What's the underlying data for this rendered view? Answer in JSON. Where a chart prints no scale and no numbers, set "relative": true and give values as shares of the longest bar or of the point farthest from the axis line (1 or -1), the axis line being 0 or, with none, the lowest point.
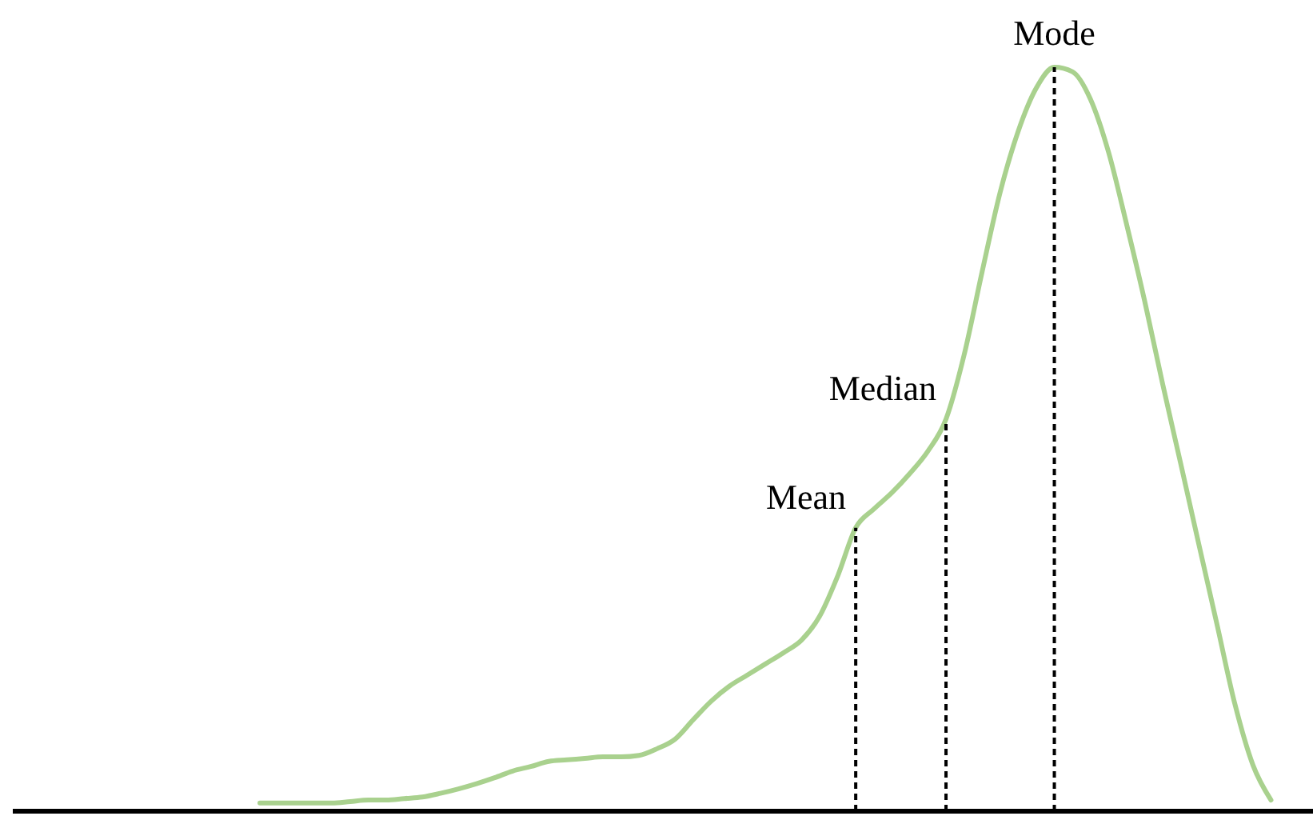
{
  "chart_data": {
    "type": "line",
    "relative": true,
    "categories": [
      null,
      null,
      null,
      null,
      null,
      null,
      null,
      null,
      null,
      null,
      null,
      null,
      null,
      null,
      null,
      null,
      null,
      null,
      null,
      null,
      null,
      null,
      null,
      null,
      null,
      null,
      null,
      null,
      null,
      null,
      null,
      null,
      null,
      null,
      null,
      null,
      null,
      null,
      null,
      null,
      null,
      null,
      null,
      null,
      null,
      null,
      null,
      null,
      null,
      null,
      null,
      null,
      null,
      null,
      null,
      null,
      null
    ],
    "series": [
      {
        "color": "#a9d18e",
        "values": [
          0.011,
          0.011,
          0.011,
          0.011,
          0.011,
          0.013,
          0.015,
          0.015,
          0.017,
          0.019,
          0.024,
          0.03,
          0.037,
          0.045,
          0.054,
          0.06,
          0.067,
          0.069,
          0.071,
          0.073,
          0.073,
          0.075,
          0.084,
          0.097,
          0.123,
          0.148,
          0.168,
          0.183,
          0.198,
          0.213,
          0.23,
          0.262,
          0.316,
          0.381,
          0.406,
          0.428,
          0.454,
          0.484,
          0.527,
          0.613,
          0.725,
          0.832,
          0.914,
          0.972,
          1,
          0.994,
          0.957,
          0.886,
          0.789,
          0.686,
          0.574,
          0.467,
          0.359,
          0.252,
          0.144,
          0.062,
          0.015
        ]
      }
    ],
    "annotations": [
      "Mean",
      "Median",
      "Mode"
    ],
    "marker": "none",
    "grid": false,
    "legend": false
  }
}
